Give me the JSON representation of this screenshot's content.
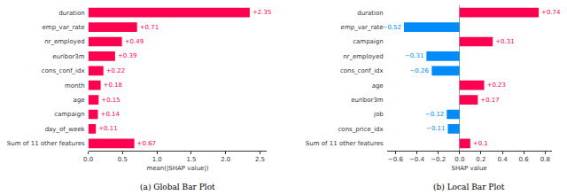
{
  "chart_data": [
    {
      "type": "bar",
      "orientation": "horizontal",
      "title": "(a) Global Bar Plot",
      "x_label": "mean(|SHAP value|)",
      "categories": [
        "duration",
        "emp_var_rate",
        "nr_employed",
        "euribor3m",
        "cons_conf_idx",
        "month",
        "age",
        "campaign",
        "day_of_week",
        "Sum of 11 other features"
      ],
      "values": [
        2.35,
        0.71,
        0.49,
        0.39,
        0.22,
        0.18,
        0.15,
        0.14,
        0.11,
        0.67
      ],
      "value_labels": [
        "+2.35",
        "+0.71",
        "+0.49",
        "+0.39",
        "+0.22",
        "+0.18",
        "+0.15",
        "+0.14",
        "+0.11",
        "+0.67"
      ],
      "colors": [
        "#ff0051",
        "#ff0051",
        "#ff0051",
        "#ff0051",
        "#ff0051",
        "#ff0051",
        "#ff0051",
        "#ff0051",
        "#ff0051",
        "#ff0051"
      ],
      "data_labels": true,
      "xlim": [
        0,
        2.6
      ],
      "xticks": [
        {
          "value": 0,
          "label": "0.0"
        },
        {
          "value": 0.5,
          "label": "0.5"
        },
        {
          "value": 1,
          "label": "1.0"
        },
        {
          "value": 1.5,
          "label": "1.5"
        },
        {
          "value": 2,
          "label": "2.0"
        },
        {
          "value": 2.5,
          "label": "2.5"
        }
      ],
      "grid": false
    },
    {
      "type": "bar",
      "orientation": "horizontal",
      "title": "(b) Local Bar Plot",
      "x_label": "SHAP value",
      "categories": [
        "duration",
        "emp_var_rate",
        "campaign",
        "nr_employed",
        "cons_conf_idx",
        "age",
        "euribor3m",
        "job",
        "cons_price_idx",
        "Sum of 11 other features"
      ],
      "values": [
        0.74,
        -0.52,
        0.31,
        -0.31,
        -0.26,
        0.23,
        0.17,
        -0.12,
        -0.11,
        0.1
      ],
      "value_labels": [
        "+0.74",
        "−0.52",
        "+0.31",
        "−0.31",
        "−0.26",
        "+0.23",
        "+0.17",
        "−0.12",
        "−0.11",
        "+0.1"
      ],
      "colors": [
        "#ff0051",
        "#008bfb",
        "#ff0051",
        "#008bfb",
        "#008bfb",
        "#ff0051",
        "#ff0051",
        "#008bfb",
        "#008bfb",
        "#ff0051"
      ],
      "data_labels": true,
      "xlim": [
        -0.68,
        0.86
      ],
      "xticks": [
        {
          "value": -0.6,
          "label": "−0.6"
        },
        {
          "value": -0.4,
          "label": "−0.4"
        },
        {
          "value": -0.2,
          "label": "−0.2"
        },
        {
          "value": 0,
          "label": "0.0"
        },
        {
          "value": 0.2,
          "label": "0.2"
        },
        {
          "value": 0.4,
          "label": "0.4"
        },
        {
          "value": 0.6,
          "label": "0.6"
        },
        {
          "value": 0.8,
          "label": "0.8"
        }
      ],
      "grid": false
    }
  ]
}
